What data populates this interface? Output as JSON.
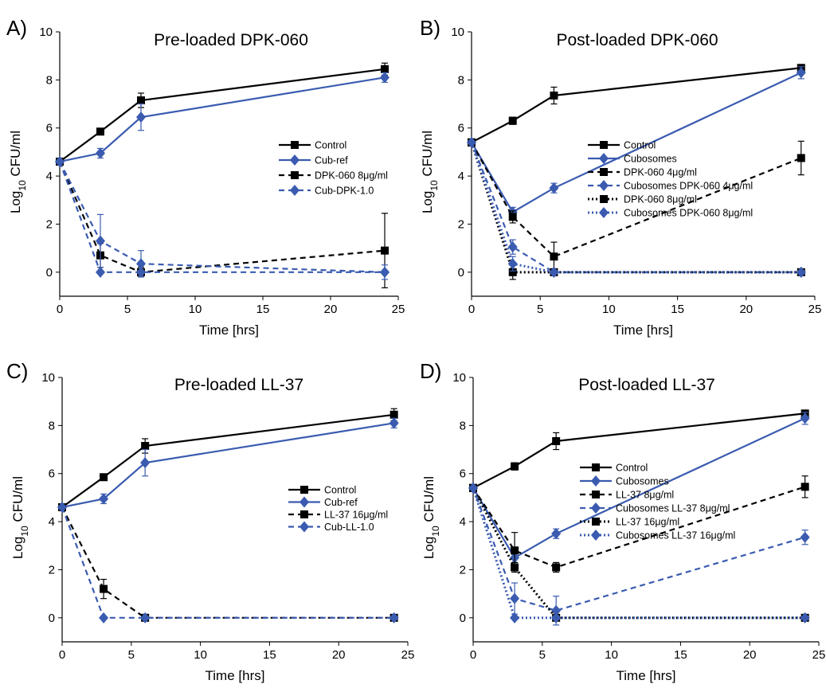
{
  "chart_data": [
    {
      "panel_label": "A)",
      "title": "Pre-loaded DPK-060",
      "type": "line",
      "xlabel": "Time [hrs]",
      "ylabel_main": "Log",
      "ylabel_sub": "10",
      "ylabel_rest": " CFU/ml",
      "xlim": [
        0,
        25
      ],
      "ylim": [
        -1,
        10
      ],
      "xticks": [
        0,
        5,
        10,
        15,
        20,
        25
      ],
      "yticks": [
        0,
        2,
        4,
        6,
        8,
        10
      ],
      "x": [
        0,
        3,
        6,
        24
      ],
      "legend_position": "right",
      "series": [
        {
          "name": "Control",
          "color": "#000000",
          "dash": "solid",
          "marker": "square",
          "values": [
            4.6,
            5.85,
            7.15,
            8.45
          ],
          "errors": [
            0,
            0.1,
            0.3,
            0.25
          ]
        },
        {
          "name": "Cub-ref",
          "color": "#3a5bb0",
          "dash": "solid",
          "marker": "diamond",
          "values": [
            4.6,
            4.95,
            6.45,
            8.1
          ],
          "errors": [
            0,
            0.2,
            0.55,
            0.2
          ]
        },
        {
          "name": "DPK-060 8μg/ml",
          "color": "#000000",
          "dash": "dashed",
          "marker": "square",
          "values": [
            4.6,
            0.7,
            0.0,
            0.9
          ],
          "errors": [
            0,
            0.5,
            0.2,
            1.55
          ]
        },
        {
          "name": "Cub-DPK-1.0",
          "color": "#3a5bb0",
          "dash": "dashed",
          "marker": "diamond",
          "values": [
            4.6,
            1.3,
            0.35,
            0.0
          ],
          "errors": [
            0,
            1.1,
            0.55,
            0.3
          ]
        },
        {
          "name": "",
          "color": "#3a5bb0",
          "dash": "dashed",
          "marker": "diamond",
          "legend": false,
          "values": [
            4.6,
            0.0,
            0.0,
            0.0
          ],
          "errors": [
            0,
            0,
            0,
            0
          ]
        }
      ]
    },
    {
      "panel_label": "B)",
      "title": "Post-loaded DPK-060",
      "type": "line",
      "xlabel": "Time [hrs]",
      "ylabel_main": "Log",
      "ylabel_sub": "10",
      "ylabel_rest": " CFU/ml",
      "xlim": [
        0,
        25
      ],
      "ylim": [
        -1,
        10
      ],
      "xticks": [
        0,
        5,
        10,
        15,
        20,
        25
      ],
      "yticks": [
        0,
        2,
        4,
        6,
        8,
        10
      ],
      "x": [
        0,
        3,
        6,
        24
      ],
      "legend_position": "center",
      "series": [
        {
          "name": "Control",
          "color": "#000000",
          "dash": "solid",
          "marker": "square",
          "values": [
            5.4,
            6.3,
            7.35,
            8.5
          ],
          "errors": [
            0,
            0.15,
            0.35,
            0.1
          ]
        },
        {
          "name": "Cubosomes",
          "color": "#3a5bb0",
          "dash": "solid",
          "marker": "diamond",
          "values": [
            5.4,
            2.5,
            3.5,
            8.3
          ],
          "errors": [
            0,
            0.2,
            0.2,
            0.25
          ]
        },
        {
          "name": "DPK-060 4μg/ml",
          "color": "#000000",
          "dash": "dashed",
          "marker": "square",
          "values": [
            5.4,
            2.3,
            0.65,
            4.75
          ],
          "errors": [
            0,
            0.25,
            0.6,
            0.7
          ]
        },
        {
          "name": "Cubosomes DPK-060 4μg/ml",
          "color": "#3a5bb0",
          "dash": "dashed",
          "marker": "diamond",
          "values": [
            5.4,
            1.05,
            0.0,
            0.0
          ],
          "errors": [
            0,
            0.3,
            0,
            0
          ]
        },
        {
          "name": "DPK-060 8μg/ml",
          "color": "#000000",
          "dash": "dotted",
          "marker": "square",
          "values": [
            5.4,
            0.0,
            0.0,
            0.0
          ],
          "errors": [
            0,
            0.3,
            0,
            0
          ]
        },
        {
          "name": "Cubosomes DPK-060 8μg/ml",
          "color": "#3a5bb0",
          "dash": "dotted",
          "marker": "diamond",
          "values": [
            5.4,
            0.35,
            0.0,
            0.0
          ],
          "errors": [
            0,
            0.3,
            0,
            0
          ]
        }
      ]
    },
    {
      "panel_label": "C)",
      "title": "Pre-loaded LL-37",
      "type": "line",
      "xlabel": "Time [hrs]",
      "ylabel_main": "Log",
      "ylabel_sub": "10",
      "ylabel_rest": " CFU/ml",
      "xlim": [
        0,
        25
      ],
      "ylim": [
        -1,
        10
      ],
      "xticks": [
        0,
        5,
        10,
        15,
        20,
        25
      ],
      "yticks": [
        0,
        2,
        4,
        6,
        8,
        10
      ],
      "x": [
        0,
        3,
        6,
        24
      ],
      "legend_position": "right",
      "series": [
        {
          "name": "Control",
          "color": "#000000",
          "dash": "solid",
          "marker": "square",
          "values": [
            4.6,
            5.85,
            7.15,
            8.45
          ],
          "errors": [
            0,
            0.1,
            0.3,
            0.25
          ]
        },
        {
          "name": "Cub-ref",
          "color": "#3a5bb0",
          "dash": "solid",
          "marker": "diamond",
          "values": [
            4.6,
            4.95,
            6.45,
            8.1
          ],
          "errors": [
            0,
            0.2,
            0.55,
            0.2
          ]
        },
        {
          "name": "LL-37 16μg/ml",
          "color": "#000000",
          "dash": "dashed",
          "marker": "square",
          "values": [
            4.6,
            1.2,
            0.0,
            0.0
          ],
          "errors": [
            0,
            0.4,
            0.1,
            0.1
          ]
        },
        {
          "name": "Cub-LL-1.0",
          "color": "#3a5bb0",
          "dash": "dashed",
          "marker": "diamond",
          "values": [
            4.6,
            0.0,
            0.0,
            0.0
          ],
          "errors": [
            0,
            0,
            0,
            0
          ]
        }
      ]
    },
    {
      "panel_label": "D)",
      "title": "Post-loaded LL-37",
      "type": "line",
      "xlabel": "Time [hrs]",
      "ylabel_main": "Log",
      "ylabel_sub": "10",
      "ylabel_rest": " CFU/ml",
      "xlim": [
        0,
        25
      ],
      "ylim": [
        -1,
        10
      ],
      "xticks": [
        0,
        5,
        10,
        15,
        20,
        25
      ],
      "yticks": [
        0,
        2,
        4,
        6,
        8,
        10
      ],
      "x": [
        0,
        3,
        6,
        24
      ],
      "legend_position": "center",
      "series": [
        {
          "name": "Control",
          "color": "#000000",
          "dash": "solid",
          "marker": "square",
          "values": [
            5.4,
            6.3,
            7.35,
            8.5
          ],
          "errors": [
            0,
            0.15,
            0.35,
            0.1
          ]
        },
        {
          "name": "Cubosomes",
          "color": "#3a5bb0",
          "dash": "solid",
          "marker": "diamond",
          "values": [
            5.4,
            2.5,
            3.5,
            8.3
          ],
          "errors": [
            0,
            0.2,
            0.2,
            0.25
          ]
        },
        {
          "name": "LL-37 8μg/ml",
          "color": "#000000",
          "dash": "dashed",
          "marker": "square",
          "values": [
            5.4,
            2.8,
            2.1,
            5.45
          ],
          "errors": [
            0,
            0.75,
            0.2,
            0.45
          ]
        },
        {
          "name": "Cubosomes LL-37 8μg/ml",
          "color": "#3a5bb0",
          "dash": "dashed",
          "marker": "diamond",
          "values": [
            5.4,
            0.8,
            0.3,
            3.35
          ],
          "errors": [
            0,
            0.65,
            0.6,
            0.3
          ]
        },
        {
          "name": "LL-37 16μg/ml",
          "color": "#000000",
          "dash": "dotted",
          "marker": "square",
          "values": [
            5.4,
            2.1,
            0.0,
            0.0
          ],
          "errors": [
            0,
            0.2,
            0,
            0
          ]
        },
        {
          "name": "Cubosomes LL-37 16μg/ml",
          "color": "#3a5bb0",
          "dash": "dotted",
          "marker": "diamond",
          "values": [
            5.4,
            0.0,
            0.0,
            0.0
          ],
          "errors": [
            0,
            0,
            0,
            0
          ]
        }
      ]
    }
  ]
}
